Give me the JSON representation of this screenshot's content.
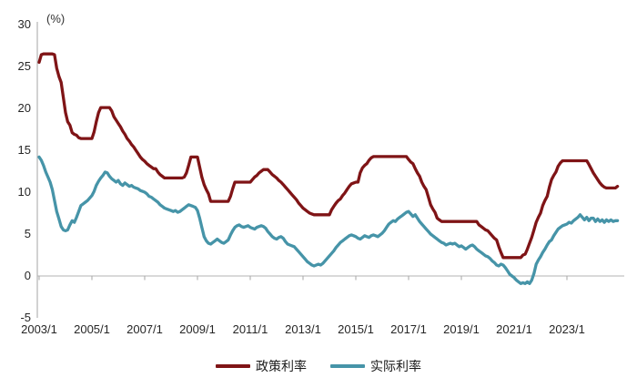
{
  "figure": {
    "unit_label": "(%)"
  },
  "axes": {
    "y": {
      "min": -5,
      "max": 30,
      "tick_interval": 5,
      "tick_labels": [
        "30",
        "25",
        "20",
        "15",
        "10",
        "5",
        "0",
        "-5"
      ],
      "axis_color": "#a6a6a6",
      "zero_line_color": "#b3b3b3",
      "label_color": "#262626"
    },
    "x": {
      "tick_labels": [
        "2003/1",
        "2005/1",
        "2007/1",
        "2009/1",
        "2011/1",
        "2013/1",
        "2015/1",
        "2017/1",
        "2019/1",
        "2021/1",
        "2023/1"
      ],
      "months_per_tick": 24,
      "tick_color": "#a6a6a6"
    }
  },
  "legend": [
    {
      "label": "政策利率",
      "color": "#7f1416"
    },
    {
      "label": "实际利率",
      "color": "#4694a8"
    }
  ],
  "chart_data": {
    "type": "line",
    "title": "",
    "xlabel": "",
    "ylabel": "(%)",
    "ylim": [
      -5,
      30
    ],
    "x_start": "2003/1",
    "x_end": "2024/12",
    "frequency": "monthly",
    "grid": false,
    "legend_position": "bottom-center",
    "series": [
      {
        "name": "政策利率",
        "color": "#7f1416",
        "values": [
          25.5,
          26.4,
          26.5,
          26.5,
          26.5,
          26.5,
          26.5,
          26.4,
          24.8,
          23.8,
          23.1,
          21.3,
          19.5,
          18.4,
          18.0,
          17.1,
          16.9,
          16.8,
          16.5,
          16.4,
          16.4,
          16.4,
          16.4,
          16.4,
          16.4,
          17.2,
          18.4,
          19.5,
          20.1,
          20.1,
          20.1,
          20.1,
          20.1,
          19.7,
          19.0,
          18.6,
          18.2,
          17.8,
          17.3,
          16.9,
          16.4,
          16.1,
          15.7,
          15.4,
          15.0,
          14.6,
          14.2,
          13.9,
          13.7,
          13.4,
          13.2,
          13.0,
          12.8,
          12.8,
          12.4,
          12.1,
          11.9,
          11.7,
          11.7,
          11.7,
          11.7,
          11.7,
          11.7,
          11.7,
          11.7,
          11.7,
          11.8,
          12.3,
          13.2,
          14.2,
          14.2,
          14.2,
          14.2,
          13.0,
          11.8,
          10.9,
          10.3,
          9.8,
          8.9,
          8.9,
          8.9,
          8.9,
          8.9,
          8.9,
          8.9,
          8.9,
          8.9,
          9.5,
          10.4,
          11.2,
          11.2,
          11.2,
          11.2,
          11.2,
          11.2,
          11.2,
          11.2,
          11.5,
          11.8,
          12.0,
          12.3,
          12.5,
          12.7,
          12.7,
          12.7,
          12.4,
          12.1,
          11.9,
          11.7,
          11.4,
          11.2,
          10.9,
          10.6,
          10.3,
          10.0,
          9.7,
          9.4,
          9.1,
          8.7,
          8.4,
          8.1,
          7.9,
          7.7,
          7.5,
          7.4,
          7.3,
          7.3,
          7.3,
          7.3,
          7.3,
          7.3,
          7.3,
          7.3,
          7.9,
          8.3,
          8.7,
          9.0,
          9.2,
          9.6,
          9.9,
          10.3,
          10.7,
          11.0,
          11.1,
          11.2,
          11.2,
          12.3,
          12.9,
          13.2,
          13.4,
          13.8,
          14.1,
          14.25,
          14.25,
          14.25,
          14.25,
          14.25,
          14.25,
          14.25,
          14.25,
          14.25,
          14.25,
          14.25,
          14.25,
          14.25,
          14.25,
          14.25,
          14.25,
          13.9,
          13.6,
          13.4,
          12.8,
          12.3,
          11.9,
          11.2,
          10.7,
          10.3,
          9.4,
          8.5,
          8.0,
          7.6,
          6.9,
          6.7,
          6.5,
          6.5,
          6.5,
          6.5,
          6.5,
          6.5,
          6.5,
          6.5,
          6.5,
          6.5,
          6.5,
          6.5,
          6.5,
          6.5,
          6.5,
          6.5,
          6.5,
          6.1,
          5.9,
          5.7,
          5.5,
          5.4,
          5.1,
          4.8,
          4.5,
          4.3,
          3.5,
          2.8,
          2.2,
          2.2,
          2.2,
          2.2,
          2.2,
          2.2,
          2.2,
          2.2,
          2.2,
          2.5,
          2.6,
          3.2,
          3.9,
          4.6,
          5.5,
          6.4,
          7.0,
          7.5,
          8.4,
          9.0,
          9.5,
          10.6,
          11.5,
          12.0,
          12.4,
          13.1,
          13.5,
          13.75,
          13.75,
          13.75,
          13.75,
          13.75,
          13.75,
          13.75,
          13.75,
          13.75,
          13.75,
          13.75,
          13.75,
          13.3,
          12.8,
          12.3,
          11.9,
          11.5,
          11.1,
          10.8,
          10.6,
          10.5,
          10.5,
          10.5,
          10.5,
          10.5,
          10.7
        ]
      },
      {
        "name": "实际利率",
        "color": "#4694a8",
        "values": [
          14.2,
          13.8,
          13.2,
          12.4,
          11.8,
          11.2,
          10.3,
          9.0,
          7.7,
          6.8,
          5.9,
          5.5,
          5.4,
          5.5,
          6.1,
          6.6,
          6.4,
          7.0,
          7.7,
          8.4,
          8.6,
          8.8,
          9.0,
          9.3,
          9.6,
          10.1,
          10.8,
          11.3,
          11.7,
          12.0,
          12.4,
          12.3,
          11.9,
          11.6,
          11.4,
          11.2,
          11.4,
          11.0,
          10.8,
          11.1,
          10.9,
          10.7,
          10.8,
          10.6,
          10.5,
          10.4,
          10.2,
          10.1,
          10.0,
          9.8,
          9.5,
          9.4,
          9.2,
          9.0,
          8.8,
          8.5,
          8.3,
          8.1,
          8.0,
          7.9,
          7.8,
          7.7,
          7.8,
          7.6,
          7.7,
          7.9,
          8.1,
          8.3,
          8.5,
          8.4,
          8.3,
          8.2,
          7.8,
          6.9,
          5.8,
          4.7,
          4.2,
          3.9,
          3.8,
          4.0,
          4.2,
          4.4,
          4.2,
          4.0,
          3.9,
          4.1,
          4.3,
          4.9,
          5.4,
          5.8,
          6.0,
          6.1,
          5.9,
          5.8,
          5.9,
          6.0,
          5.8,
          5.7,
          5.6,
          5.8,
          5.9,
          6.0,
          5.9,
          5.7,
          5.3,
          5.0,
          4.7,
          4.5,
          4.4,
          4.6,
          4.7,
          4.5,
          4.1,
          3.8,
          3.7,
          3.6,
          3.5,
          3.2,
          2.9,
          2.6,
          2.3,
          2.0,
          1.7,
          1.5,
          1.3,
          1.2,
          1.3,
          1.4,
          1.3,
          1.5,
          1.8,
          2.1,
          2.4,
          2.7,
          3.0,
          3.4,
          3.7,
          4.0,
          4.2,
          4.4,
          4.6,
          4.8,
          4.9,
          4.8,
          4.7,
          4.5,
          4.4,
          4.6,
          4.8,
          4.7,
          4.6,
          4.8,
          4.9,
          4.8,
          4.7,
          4.9,
          5.1,
          5.4,
          5.8,
          6.2,
          6.4,
          6.6,
          6.5,
          6.8,
          7.0,
          7.2,
          7.4,
          7.6,
          7.7,
          7.4,
          7.1,
          7.3,
          6.9,
          6.5,
          6.2,
          5.9,
          5.6,
          5.3,
          5.0,
          4.8,
          4.6,
          4.4,
          4.2,
          4.0,
          3.9,
          3.7,
          3.8,
          3.9,
          3.8,
          3.9,
          3.7,
          3.5,
          3.6,
          3.4,
          3.2,
          3.4,
          3.6,
          3.7,
          3.5,
          3.2,
          3.0,
          2.8,
          2.6,
          2.4,
          2.3,
          2.1,
          1.8,
          1.6,
          1.3,
          1.2,
          1.4,
          1.3,
          1.0,
          0.6,
          0.2,
          0.0,
          -0.2,
          -0.5,
          -0.7,
          -0.9,
          -0.8,
          -0.9,
          -0.7,
          -0.9,
          -0.5,
          0.3,
          1.4,
          1.9,
          2.3,
          2.8,
          3.2,
          3.7,
          4.1,
          4.3,
          4.8,
          5.2,
          5.6,
          5.8,
          6.0,
          6.1,
          6.2,
          6.4,
          6.3,
          6.6,
          6.8,
          7.0,
          7.3,
          7.0,
          6.7,
          7.0,
          6.6,
          6.9,
          6.9,
          6.5,
          6.8,
          6.5,
          6.7,
          6.4,
          6.7,
          6.5,
          6.7,
          6.5,
          6.6,
          6.6
        ]
      }
    ]
  }
}
